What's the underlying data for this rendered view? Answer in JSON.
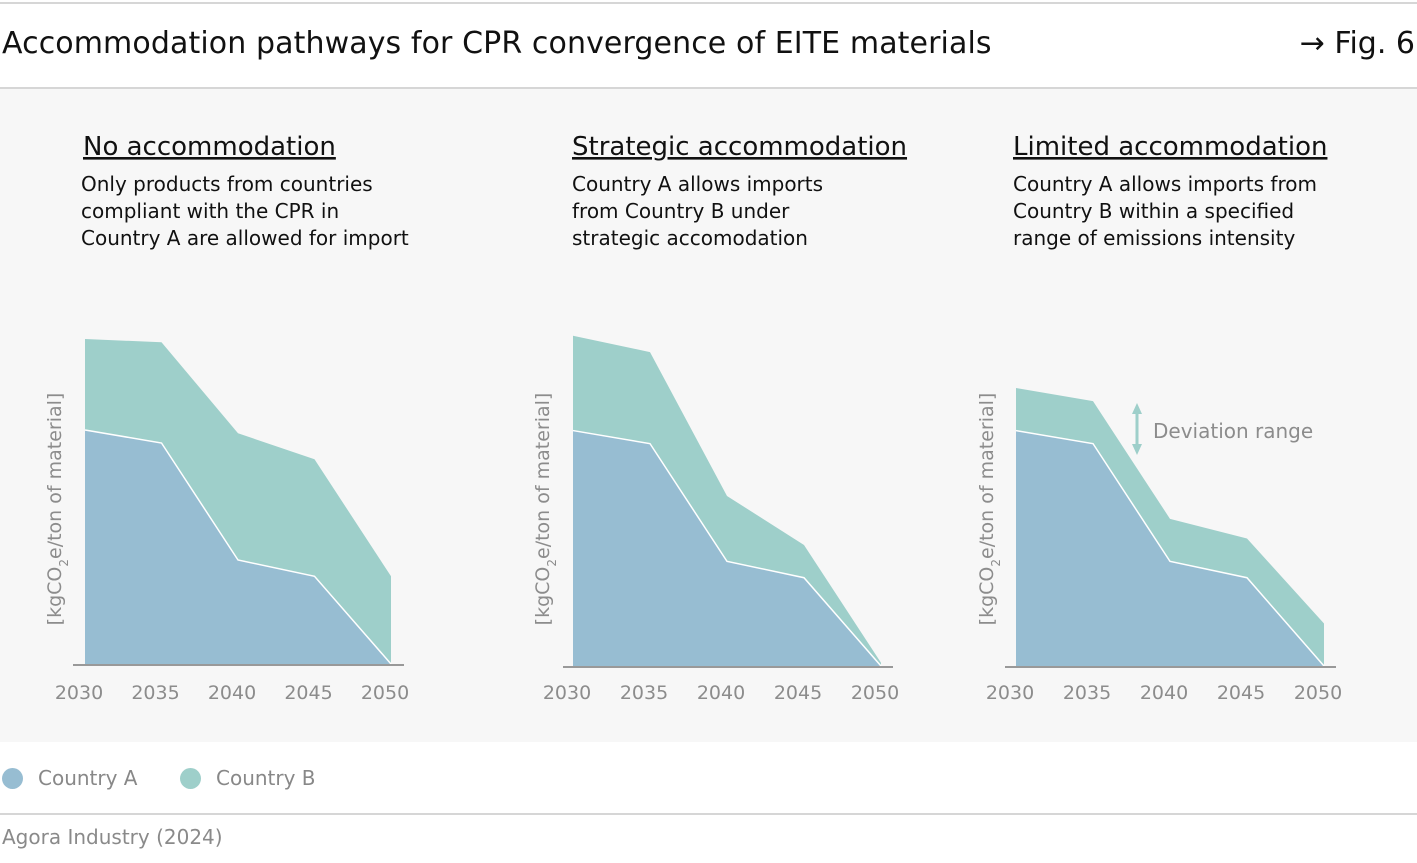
{
  "header": {
    "title": "Accommodation pathways for CPR convergence of EITE materials",
    "fig_ref": "→ Fig. 6"
  },
  "colors": {
    "country_a": "#97bdd2",
    "country_b": "#9ecfca",
    "axis": "#999999",
    "tick_text": "#8c8c8c",
    "panel_background": "#f7f7f7"
  },
  "legend": [
    {
      "label": "Country A",
      "color": "#97bdd2"
    },
    {
      "label": "Country B",
      "color": "#9ecfca"
    }
  ],
  "source": "Agora Industry (2024)",
  "chart_data": [
    {
      "type": "area",
      "title": "No accommodation",
      "subtitle": [
        "Only products from countries",
        "compliant with the CPR in",
        "Country A are allowed for import"
      ],
      "ylabel": "[kgCO2e/ton of material]",
      "x": [
        "2030",
        "2035",
        "2040",
        "2045",
        "2050"
      ],
      "ylim": [
        0,
        100
      ],
      "series": [
        {
          "name": "Country A",
          "values": [
            72,
            68,
            32,
            27,
            0
          ]
        },
        {
          "name": "Country B",
          "values": [
            100,
            99,
            71,
            63,
            27
          ]
        }
      ]
    },
    {
      "type": "area",
      "title": "Strategic accommodation",
      "subtitle": [
        "Country A allows imports",
        "from Country B under",
        "strategic accomodation"
      ],
      "ylabel": "[kgCO2e/ton of material]",
      "x": [
        "2030",
        "2035",
        "2040",
        "2045",
        "2050"
      ],
      "ylim": [
        0,
        100
      ],
      "series": [
        {
          "name": "Country A",
          "values": [
            72,
            68,
            32,
            27,
            0
          ]
        },
        {
          "name": "Country B",
          "values": [
            101,
            96,
            52,
            37,
            1
          ]
        }
      ]
    },
    {
      "type": "area",
      "title": "Limited accommodation",
      "subtitle": [
        "Country A allows imports from",
        "Country B within a specified",
        "range of emissions intensity"
      ],
      "ylabel": "[kgCO2e/ton of material]",
      "x": [
        "2030",
        "2035",
        "2040",
        "2045",
        "2050"
      ],
      "ylim": [
        0,
        100
      ],
      "annotation": "Deviation range",
      "series": [
        {
          "name": "Country A",
          "values": [
            72,
            68,
            32,
            27,
            0
          ]
        },
        {
          "name": "Country B",
          "values": [
            85,
            81,
            45,
            39,
            13
          ]
        }
      ]
    }
  ]
}
